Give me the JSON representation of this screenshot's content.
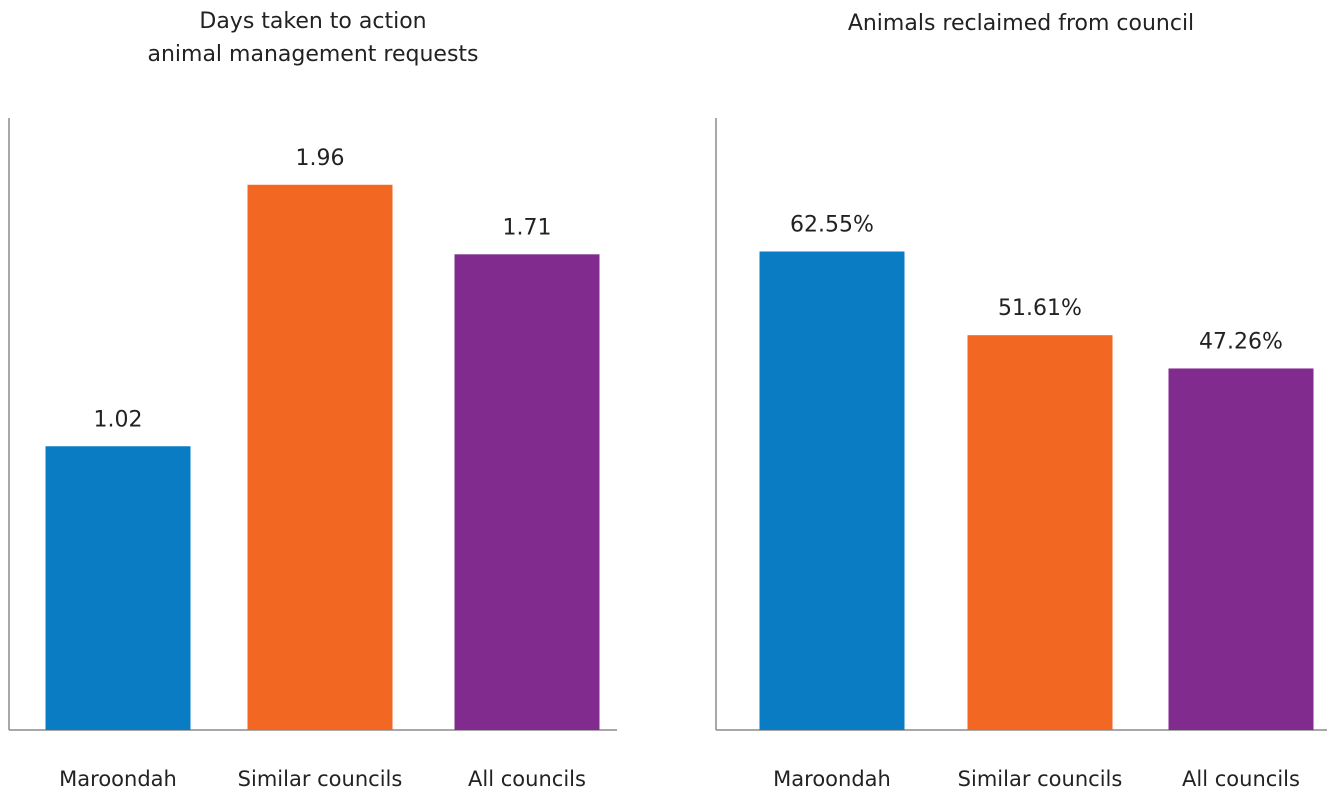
{
  "chart_data": [
    {
      "type": "bar",
      "title": "Days taken to action\nanimal management requests",
      "categories": [
        "Maroondah",
        "Similar councils",
        "All councils"
      ],
      "values": [
        1.02,
        1.96,
        1.71
      ],
      "value_labels": [
        "1.02",
        "1.96",
        "1.71"
      ],
      "colors": [
        "#0a7cc4",
        "#f26722",
        "#822b8f"
      ],
      "ylim": [
        0,
        2.2
      ],
      "grid": false,
      "legend": "none"
    },
    {
      "type": "bar",
      "title": "Animals reclaimed from council",
      "categories": [
        "Maroondah",
        "Similar councils",
        "All councils"
      ],
      "values": [
        62.55,
        51.61,
        47.26
      ],
      "value_labels": [
        "62.55%",
        "51.61%",
        "47.26%"
      ],
      "colors": [
        "#0a7cc4",
        "#f26722",
        "#822b8f"
      ],
      "ylim": [
        0,
        80
      ],
      "grid": false,
      "legend": "none"
    }
  ]
}
